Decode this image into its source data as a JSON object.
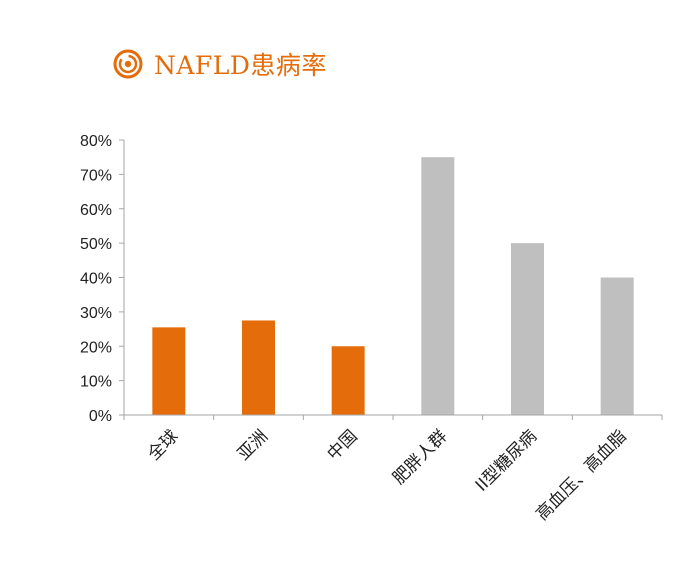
{
  "title": "NAFLD患病率",
  "colors": {
    "accent": "#E46C0A",
    "gray": "#BFBFBF",
    "axis": "#A6A6A6"
  },
  "chart_data": {
    "type": "bar",
    "title": "NAFLD患病率",
    "xlabel": "",
    "ylabel": "",
    "ylim": [
      0,
      0.8
    ],
    "yticks": [
      "0%",
      "10%",
      "20%",
      "30%",
      "40%",
      "50%",
      "60%",
      "70%",
      "80%"
    ],
    "categories": [
      "全球",
      "亚洲",
      "中国",
      "肥胖人群",
      "II型糖尿病",
      "高血压、高血脂"
    ],
    "values": [
      0.255,
      0.275,
      0.2,
      0.75,
      0.5,
      0.4
    ],
    "bar_colors": [
      "#E46C0A",
      "#E46C0A",
      "#E46C0A",
      "#BFBFBF",
      "#BFBFBF",
      "#BFBFBF"
    ],
    "grid": false,
    "legend": "none"
  }
}
